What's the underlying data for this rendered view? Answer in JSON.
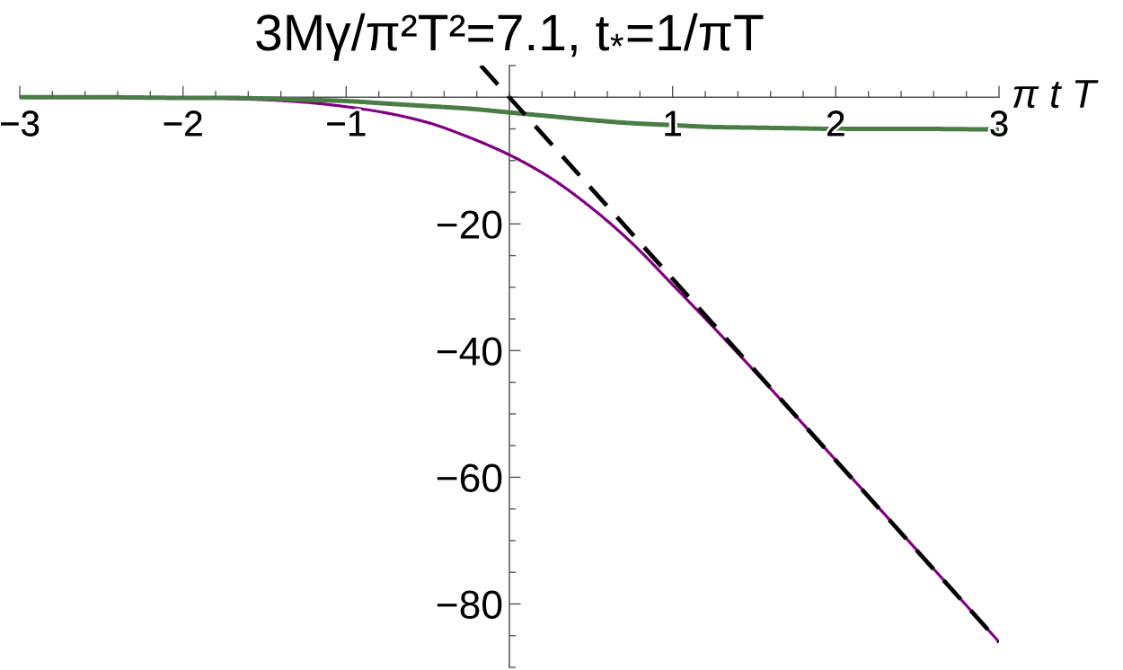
{
  "chart_data": {
    "type": "line",
    "title": "3Mγ/π²T²=7.1, t$_{*}$=1/πT",
    "xlabel": "π t T",
    "x": [
      -3,
      -2.5,
      -2,
      -1.75,
      -1.5,
      -1.25,
      -1,
      -0.75,
      -0.5,
      -0.25,
      0,
      0.25,
      0.5,
      0.75,
      1,
      1.25,
      1.5,
      1.75,
      2,
      2.5,
      3
    ],
    "series": [
      {
        "color": "#800080",
        "line_style": "solid",
        "values": [
          null,
          null,
          null,
          -0.2,
          -0.4,
          -0.8,
          -1.5,
          -2.5,
          -4,
          -6.3,
          -9.1,
          -12.7,
          -17.4,
          -23,
          -29.6,
          -36.3,
          -43.2,
          -50.2,
          -57.3,
          -71.6,
          -86
        ]
      },
      {
        "color": "#4a7d45",
        "line_style": "solid",
        "values": [
          0,
          0,
          -0.1,
          -0.1,
          -0.2,
          -0.4,
          -0.6,
          -1,
          -1.4,
          -1.8,
          -2.4,
          -3,
          -3.6,
          -4.1,
          -4.4,
          -4.7,
          -4.8,
          -4.9,
          -5,
          -5,
          -5.1
        ]
      },
      {
        "type": "line",
        "color": "#000000",
        "line_style": "dashed",
        "x": [
          -0.175,
          3
        ],
        "values": [
          5,
          -86
        ]
      }
    ],
    "xlim": [
      -3,
      3
    ],
    "ylim": [
      -90,
      5
    ],
    "xticks": [
      {
        "value": -3,
        "label": "−3"
      },
      {
        "value": -2.8,
        "label": null
      },
      {
        "value": -2.6,
        "label": null
      },
      {
        "value": -2.4,
        "label": null
      },
      {
        "value": -2.2,
        "label": null
      },
      {
        "value": -2,
        "label": "−2"
      },
      {
        "value": -1.8,
        "label": null
      },
      {
        "value": -1.6,
        "label": null
      },
      {
        "value": -1.4,
        "label": null
      },
      {
        "value": -1.2,
        "label": null
      },
      {
        "value": -1,
        "label": "−1"
      },
      {
        "value": -0.8,
        "label": null
      },
      {
        "value": -0.6,
        "label": null
      },
      {
        "value": -0.4,
        "label": null
      },
      {
        "value": -0.2,
        "label": null
      },
      {
        "value": 0,
        "label": null
      },
      {
        "value": 0.2,
        "label": null
      },
      {
        "value": 0.4,
        "label": null
      },
      {
        "value": 0.6,
        "label": null
      },
      {
        "value": 0.8,
        "label": null
      },
      1,
      {
        "value": 1.2,
        "label": null
      },
      {
        "value": 1.4,
        "label": null
      },
      {
        "value": 1.6,
        "label": null
      },
      {
        "value": 1.8,
        "label": null
      },
      2,
      {
        "value": 2.2,
        "label": null
      },
      {
        "value": 2.4,
        "label": null
      },
      {
        "value": 2.6,
        "label": null
      },
      {
        "value": 2.8,
        "label": null
      },
      3
    ],
    "yticks": [
      {
        "value": 5,
        "label": null
      },
      {
        "value": 0,
        "label": null
      },
      {
        "value": -5,
        "label": null
      },
      {
        "value": -10,
        "label": null
      },
      {
        "value": -15,
        "label": null
      },
      {
        "value": -20,
        "label": "−20"
      },
      {
        "value": -25,
        "label": null
      },
      {
        "value": -30,
        "label": null
      },
      {
        "value": -35,
        "label": null
      },
      {
        "value": -40,
        "label": "−40"
      },
      {
        "value": -45,
        "label": null
      },
      {
        "value": -50,
        "label": null
      },
      {
        "value": -55,
        "label": null
      },
      {
        "value": -60,
        "label": "−60"
      },
      {
        "value": -65,
        "label": null
      },
      {
        "value": -70,
        "label": null
      },
      {
        "value": -75,
        "label": null
      },
      {
        "value": -80,
        "label": "−80"
      },
      {
        "value": -85,
        "label": null
      },
      {
        "value": -90,
        "label": null
      }
    ]
  }
}
